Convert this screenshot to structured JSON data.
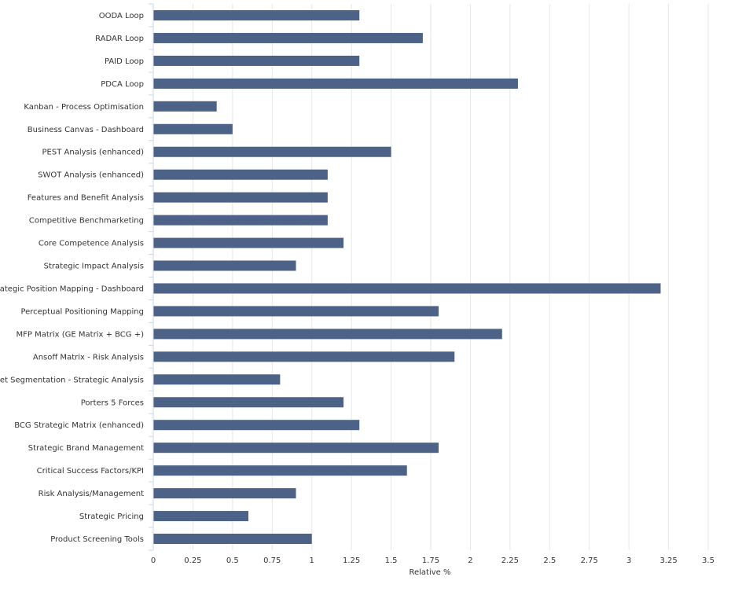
{
  "chart_data": {
    "type": "bar",
    "orientation": "horizontal",
    "categories": [
      "OODA Loop",
      "RADAR Loop",
      "PAID Loop",
      "PDCA Loop",
      "Kanban - Process Optimisation",
      "Business Canvas - Dashboard",
      "PEST Analysis (enhanced)",
      "SWOT Analysis (enhanced)",
      "Features and Benefit Analysis",
      "Competitive Benchmarketing",
      "Core Competence Analysis",
      "Strategic Impact Analysis",
      "Strategic Position Mapping - Dashboard",
      "Perceptual Positioning Mapping",
      "MFP Matrix (GE Matrix + BCG +)",
      "Ansoff Matrix - Risk Analysis",
      "Market Segmentation - Strategic Analysis",
      "Porters 5 Forces",
      "BCG Strategic Matrix (enhanced)",
      "Strategic Brand Management",
      "Critical Success Factors/KPI",
      "Risk Analysis/Management",
      "Strategic Pricing",
      "Product Screening Tools"
    ],
    "values": [
      1.3,
      1.7,
      1.3,
      2.3,
      0.4,
      0.5,
      1.5,
      1.1,
      1.1,
      1.1,
      1.2,
      0.9,
      3.2,
      1.8,
      2.2,
      1.9,
      0.8,
      1.2,
      1.3,
      1.8,
      1.6,
      0.9,
      0.6,
      1.0
    ],
    "xlabel": "Relative %",
    "ylabel": "",
    "xlim": [
      0,
      3.5
    ],
    "ticks": [
      "0",
      "0.25",
      "0.5",
      "0.75",
      "1",
      "1.25",
      "1.5",
      "1.75",
      "2",
      "2.25",
      "2.5",
      "2.75",
      "3",
      "3.25",
      "3.5"
    ],
    "grid": "vertical",
    "bar_color": "#4d6287",
    "grid_color": "#e6e6e6",
    "axis_color": "#ccd6eb"
  }
}
